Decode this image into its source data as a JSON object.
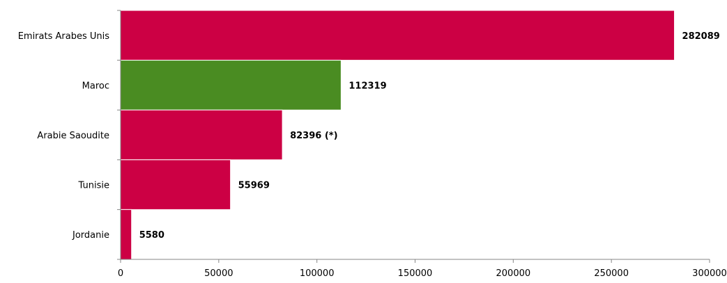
{
  "chart_data": {
    "type": "bar",
    "orientation": "horizontal",
    "title": "",
    "xlabel": "",
    "ylabel": "",
    "categories": [
      "Emirats Arabes Unis",
      "Maroc",
      "Arabie Saoudite",
      "Tunisie",
      "Jordanie"
    ],
    "values": [
      282089,
      112319,
      82396,
      55969,
      5580
    ],
    "data_labels": [
      "282089",
      "112319",
      "82396 (*)",
      "55969",
      "5580"
    ],
    "bar_colors": [
      "#cc0044",
      "#4a8c22",
      "#cc0044",
      "#cc0044",
      "#cc0044"
    ],
    "xlim": [
      0,
      300000
    ],
    "x_ticks": [
      0,
      50000,
      100000,
      150000,
      200000,
      250000,
      300000
    ],
    "x_tick_labels": [
      "0",
      "50000",
      "100000",
      "150000",
      "200000",
      "250000",
      "300000"
    ],
    "grid": false,
    "legend": "none"
  }
}
